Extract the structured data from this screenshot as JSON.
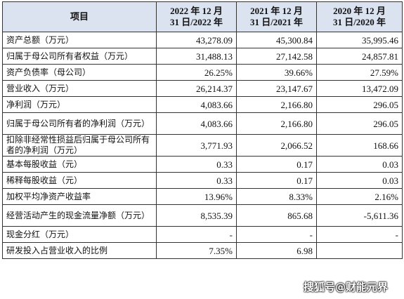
{
  "header": {
    "item": "项目",
    "col1_line1": "2022 年 12 月",
    "col1_line2": "31 日/2022 年",
    "col2_line1": "2021 年 12 月",
    "col2_line2": "31 日/2021 年",
    "col3_line1": "2020 年 12 月",
    "col3_line2": "31 日/2020 年"
  },
  "rows": [
    {
      "label": "资产总额（万元）",
      "v2022": "43,278.09",
      "v2021": "45,300.84",
      "v2020": "35,995.46"
    },
    {
      "label": "归属于母公司所有者权益（万元）",
      "v2022": "31,488.13",
      "v2021": "27,142.58",
      "v2020": "24,857.81"
    },
    {
      "label": "资产负债率（母公司）",
      "v2022": "26.25%",
      "v2021": "39.66%",
      "v2020": "27.59%"
    },
    {
      "label": "营业收入（万元）",
      "v2022": "26,214.37",
      "v2021": "23,147.67",
      "v2020": "13,472.09"
    },
    {
      "label": "净利润（万元）",
      "v2022": "4,083.66",
      "v2021": "2,166.80",
      "v2020": "296.05"
    },
    {
      "label": "归属于母公司所有者的净利润（万元）",
      "v2022": "4,083.66",
      "v2021": "2,166.80",
      "v2020": "296.05"
    },
    {
      "label": "扣除非经常性损益后归属于母公司所有者的净利润（万元）",
      "v2022": "3,771.93",
      "v2021": "2,066.52",
      "v2020": "168.66"
    },
    {
      "label": "基本每股收益（元）",
      "v2022": "0.33",
      "v2021": "0.17",
      "v2020": "0.03"
    },
    {
      "label": "稀释每股收益（元）",
      "v2022": "0.33",
      "v2021": "0.17",
      "v2020": "0.03"
    },
    {
      "label": "加权平均净资产收益率",
      "v2022": "13.96%",
      "v2021": "8.33%",
      "v2020": "2.16%"
    },
    {
      "label": "经营活动产生的现金流量净额（万元）",
      "v2022": "8,535.39",
      "v2021": "865.68",
      "v2020": "-5,611.36"
    },
    {
      "label": "现金分红（万元）",
      "v2022": "-",
      "v2021": "-",
      "v2020": "-"
    },
    {
      "label": "研发投入占营业收入的比例",
      "v2022": "7.35%",
      "v2021": "6.98",
      "v2020": ""
    }
  ],
  "watermark": "搜狐号@财能元界",
  "colors": {
    "header_bg": "#dbe3f0",
    "border": "#333333"
  }
}
